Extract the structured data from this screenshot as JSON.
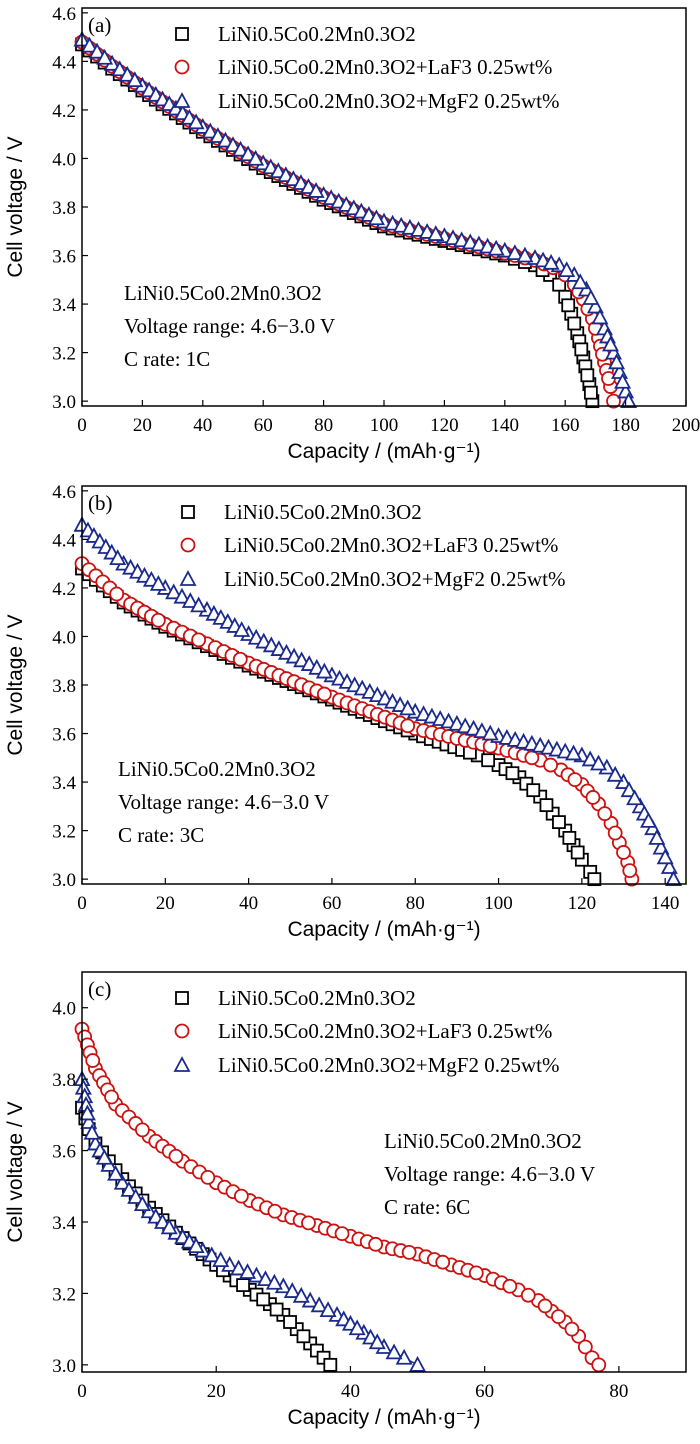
{
  "chart_data": [
    {
      "type": "scatter",
      "panel_label": "(a)",
      "xlabel": "Capacity / (mAh·g⁻¹)",
      "ylabel": "Cell voltage / V",
      "xlim": [
        0,
        200
      ],
      "ylim": [
        2.98,
        4.62
      ],
      "xticks": [
        0,
        20,
        40,
        60,
        80,
        100,
        120,
        140,
        160,
        180,
        200
      ],
      "yticks": [
        3.0,
        3.2,
        3.4,
        3.6,
        3.8,
        4.0,
        4.2,
        4.4,
        4.6
      ],
      "grid": false,
      "legend_position": "top",
      "annotation": [
        "LiNi0.5Co0.2Mn0.3O2",
        "Voltage range: 4.6−3.0 V",
        "C rate: 1C"
      ],
      "series": [
        {
          "name": "LiNi0.5Co0.2Mn0.3O2",
          "marker": "square",
          "color": "#000000",
          "x": [
            0,
            10,
            20,
            40,
            60,
            80,
            100,
            120,
            140,
            150,
            155,
            158,
            160,
            162,
            164,
            166,
            168,
            169
          ],
          "y": [
            4.47,
            4.37,
            4.28,
            4.11,
            3.96,
            3.83,
            3.72,
            3.66,
            3.6,
            3.56,
            3.52,
            3.48,
            3.43,
            3.36,
            3.28,
            3.18,
            3.07,
            3.0
          ]
        },
        {
          "name": "LiNi0.5Co0.2Mn0.3O2+LaF3 0.25wt%",
          "marker": "circle",
          "color": "#cc1111",
          "x": [
            0,
            10,
            20,
            40,
            60,
            80,
            100,
            120,
            140,
            150,
            156,
            160,
            163,
            166,
            169,
            171,
            173,
            175,
            176
          ],
          "y": [
            4.48,
            4.38,
            4.29,
            4.12,
            3.97,
            3.84,
            3.73,
            3.67,
            3.61,
            3.58,
            3.55,
            3.52,
            3.48,
            3.42,
            3.34,
            3.26,
            3.16,
            3.06,
            3.0
          ]
        },
        {
          "name": "LiNi0.5Co0.2Mn0.3O2+MgF2 0.25wt%",
          "marker": "triangle",
          "color": "#1a2a8c",
          "x": [
            0,
            10,
            20,
            40,
            60,
            80,
            100,
            120,
            140,
            150,
            158,
            163,
            167,
            170,
            173,
            176,
            178,
            180,
            181
          ],
          "y": [
            4.49,
            4.39,
            4.3,
            4.13,
            3.98,
            3.85,
            3.74,
            3.68,
            3.62,
            3.59,
            3.56,
            3.52,
            3.46,
            3.39,
            3.3,
            3.2,
            3.12,
            3.04,
            3.0
          ]
        }
      ]
    },
    {
      "type": "scatter",
      "panel_label": "(b)",
      "xlabel": "Capacity / (mAh·g⁻¹)",
      "ylabel": "Cell voltage / V",
      "xlim": [
        0,
        145
      ],
      "ylim": [
        2.98,
        4.62
      ],
      "xticks": [
        0,
        20,
        40,
        60,
        80,
        100,
        120,
        140
      ],
      "yticks": [
        3.0,
        3.2,
        3.4,
        3.6,
        3.8,
        4.0,
        4.2,
        4.4,
        4.6
      ],
      "grid": false,
      "legend_position": "top",
      "annotation": [
        "LiNi0.5Co0.2Mn0.3O2",
        "Voltage range: 4.6−3.0 V",
        "C rate: 3C"
      ],
      "series": [
        {
          "name": "LiNi0.5Co0.2Mn0.3O2",
          "marker": "square",
          "color": "#000000",
          "x": [
            0,
            10,
            20,
            30,
            40,
            60,
            80,
            95,
            100,
            105,
            110,
            113,
            116,
            118,
            120,
            122,
            123
          ],
          "y": [
            4.28,
            4.14,
            4.04,
            3.96,
            3.88,
            3.74,
            3.6,
            3.51,
            3.47,
            3.42,
            3.34,
            3.27,
            3.2,
            3.14,
            3.08,
            3.03,
            3.0
          ]
        },
        {
          "name": "LiNi0.5Co0.2Mn0.3O2+LaF3 0.25wt%",
          "marker": "circle",
          "color": "#cc1111",
          "x": [
            0,
            10,
            20,
            30,
            40,
            60,
            80,
            100,
            110,
            115,
            120,
            124,
            127,
            129,
            131,
            132
          ],
          "y": [
            4.3,
            4.15,
            4.05,
            3.97,
            3.89,
            3.75,
            3.62,
            3.54,
            3.49,
            3.45,
            3.39,
            3.31,
            3.23,
            3.15,
            3.07,
            3.0
          ]
        },
        {
          "name": "LiNi0.5Co0.2Mn0.3O2+MgF2 0.25wt%",
          "marker": "triangle",
          "color": "#1a2a8c",
          "x": [
            0,
            10,
            20,
            30,
            40,
            60,
            80,
            100,
            120,
            126,
            130,
            134,
            137,
            139,
            141,
            142
          ],
          "y": [
            4.46,
            4.3,
            4.2,
            4.11,
            4.01,
            3.84,
            3.69,
            3.59,
            3.51,
            3.46,
            3.4,
            3.3,
            3.21,
            3.13,
            3.05,
            3.0
          ]
        }
      ]
    },
    {
      "type": "scatter",
      "panel_label": "(c)",
      "xlabel": "Capacity / (mAh·g⁻¹)",
      "ylabel": "Cell voltage / V",
      "xlim": [
        0,
        90
      ],
      "ylim": [
        2.98,
        4.1
      ],
      "xticks": [
        0,
        20,
        40,
        60,
        80
      ],
      "yticks": [
        3.0,
        3.2,
        3.4,
        3.6,
        3.8,
        4.0
      ],
      "grid": false,
      "legend_position": "top",
      "annotation": [
        "LiNi0.5Co0.2Mn0.3O2",
        "Voltage range: 4.6−3.0 V",
        "C rate: 6C"
      ],
      "series": [
        {
          "name": "LiNi0.5Co0.2Mn0.3O2",
          "marker": "square",
          "color": "#000000",
          "x": [
            0,
            1,
            2,
            4,
            6,
            10,
            14,
            18,
            22,
            25,
            28,
            30,
            32,
            34,
            35,
            36,
            37
          ],
          "y": [
            3.72,
            3.66,
            3.62,
            3.57,
            3.52,
            3.44,
            3.37,
            3.31,
            3.25,
            3.21,
            3.17,
            3.14,
            3.1,
            3.06,
            3.04,
            3.02,
            3.0
          ]
        },
        {
          "name": "LiNi0.5Co0.2Mn0.3O2+LaF3 0.25wt%",
          "marker": "circle",
          "color": "#cc1111",
          "x": [
            0,
            2,
            5,
            10,
            15,
            20,
            25,
            30,
            35,
            40,
            45,
            50,
            55,
            60,
            65,
            68,
            70,
            72,
            74,
            75,
            76,
            77
          ],
          "y": [
            3.94,
            3.83,
            3.73,
            3.64,
            3.57,
            3.51,
            3.46,
            3.42,
            3.39,
            3.36,
            3.33,
            3.31,
            3.28,
            3.25,
            3.21,
            3.18,
            3.15,
            3.12,
            3.08,
            3.05,
            3.02,
            3.0
          ]
        },
        {
          "name": "LiNi0.5Co0.2Mn0.3O2+MgF2 0.25wt%",
          "marker": "triangle",
          "color": "#1a2a8c",
          "x": [
            0,
            1,
            2,
            4,
            6,
            10,
            14,
            18,
            22,
            26,
            30,
            34,
            38,
            42,
            45,
            48,
            50
          ],
          "y": [
            3.8,
            3.68,
            3.62,
            3.56,
            3.51,
            3.43,
            3.37,
            3.32,
            3.28,
            3.25,
            3.22,
            3.18,
            3.14,
            3.09,
            3.05,
            3.02,
            3.0
          ]
        }
      ]
    }
  ]
}
